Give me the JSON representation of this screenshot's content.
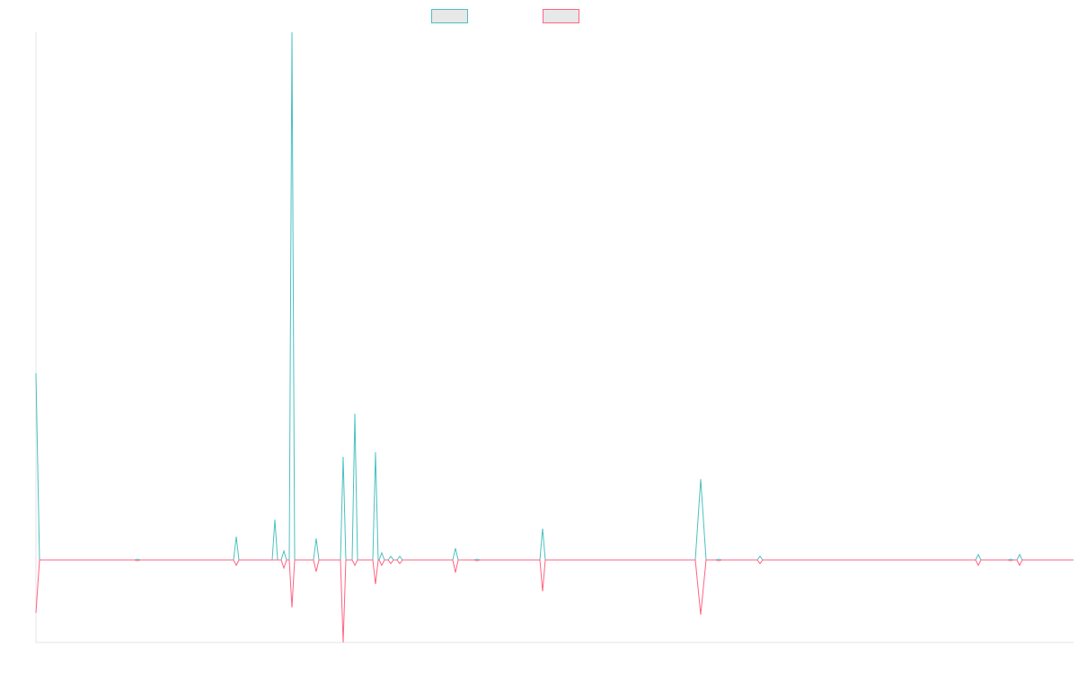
{
  "chart_data": {
    "type": "line",
    "x": [
      0,
      4,
      110,
      113,
      116,
      220,
      223,
      226,
      263,
      266,
      269,
      273,
      276,
      279,
      282,
      285,
      288,
      309,
      312,
      315,
      339,
      342,
      345,
      352,
      355,
      358,
      375,
      378,
      381,
      382,
      385,
      388,
      392,
      395,
      398,
      402,
      405,
      408,
      464,
      467,
      470,
      488,
      491,
      494,
      561,
      564,
      567,
      734,
      740,
      746,
      757,
      760,
      763,
      803,
      806,
      809,
      1046,
      1049,
      1052,
      1082,
      1085,
      1088,
      1092,
      1095,
      1098,
      1155
    ],
    "series": [
      {
        "color": "#4bc0c0",
        "values": [
          208,
          0,
          0,
          1,
          0,
          0,
          26,
          0,
          0,
          45,
          0,
          0,
          10,
          0,
          0,
          588,
          0,
          0,
          24,
          0,
          0,
          115,
          0,
          0,
          163,
          0,
          0,
          120,
          0,
          0,
          8,
          0,
          0,
          4,
          0,
          0,
          4,
          0,
          0,
          13,
          0,
          0,
          1,
          0,
          0,
          35,
          0,
          0,
          90,
          0,
          0,
          1,
          0,
          0,
          4,
          0,
          0,
          6,
          0,
          0,
          1,
          0,
          0,
          6,
          0,
          0
        ]
      },
      {
        "color": "#ff6384",
        "values": [
          -59,
          0,
          0,
          -1,
          0,
          0,
          -6,
          0,
          0,
          0,
          0,
          0,
          -9,
          0,
          0,
          -53,
          0,
          0,
          -13,
          0,
          0,
          -92,
          0,
          0,
          -6,
          0,
          0,
          -27,
          0,
          0,
          -6,
          0,
          0,
          -4,
          0,
          0,
          -4,
          0,
          0,
          -14,
          0,
          0,
          -1,
          0,
          0,
          -35,
          0,
          0,
          -61,
          0,
          0,
          -1,
          0,
          0,
          -4,
          0,
          0,
          -6,
          0,
          0,
          -1,
          0,
          0,
          -6,
          0,
          0
        ]
      }
    ],
    "xlim": [
      0,
      1155
    ],
    "ylim": [
      -92,
      588
    ],
    "legend": "top"
  }
}
